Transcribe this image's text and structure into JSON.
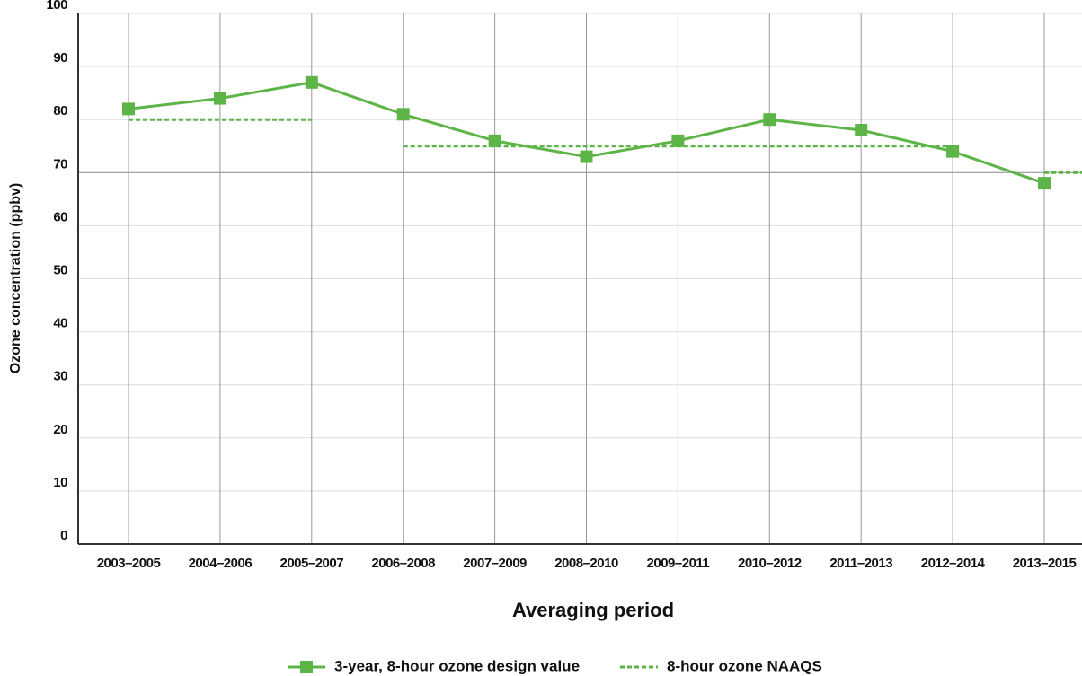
{
  "chart_data": {
    "type": "line",
    "x_label": "Averaging period",
    "y_label": "Ozone concentration (ppbv)",
    "categories": [
      "2003–2005",
      "2004–2006",
      "2005–2007",
      "2006–2008",
      "2007–2009",
      "2008–2010",
      "2009–2011",
      "2010–2012",
      "2011–2013",
      "2012–2014",
      "2013–2015"
    ],
    "series": [
      {
        "name": "3-year, 8-hour ozone design value",
        "color": "#5db547",
        "style": "solid",
        "marker": "square",
        "values": [
          82,
          84,
          87,
          81,
          76,
          73,
          76,
          80,
          78,
          74,
          68
        ]
      },
      {
        "name": "8-hour ozone NAAQS",
        "color": "#5db547",
        "style": "dashed",
        "values": [
          80,
          80,
          80,
          75,
          75,
          75,
          75,
          75,
          75,
          75,
          70
        ]
      }
    ],
    "ylim": [
      0,
      100
    ],
    "yticks": [
      0,
      10,
      20,
      30,
      40,
      50,
      60,
      70,
      80,
      90,
      100
    ],
    "grid": true
  }
}
